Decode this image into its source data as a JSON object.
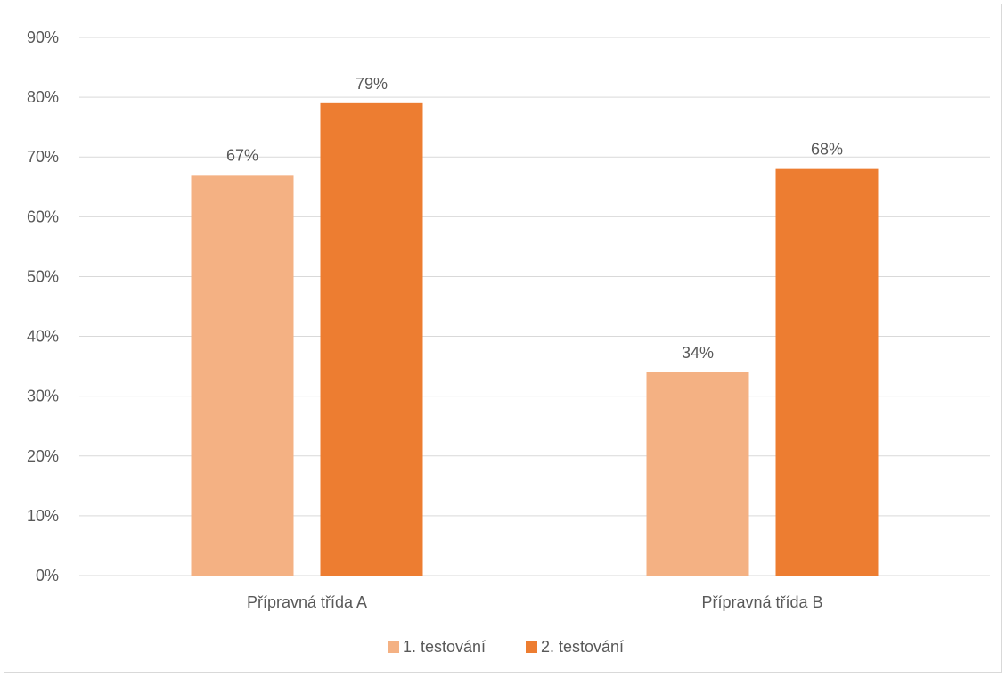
{
  "chart_data": {
    "type": "bar",
    "categories": [
      "Přípravná třída A",
      "Přípravná třída B"
    ],
    "series": [
      {
        "name": "1. testování",
        "values": [
          67,
          34
        ],
        "labels": [
          "67%",
          "34%"
        ],
        "color": "#f4b183"
      },
      {
        "name": "2. testování",
        "values": [
          79,
          68
        ],
        "labels": [
          "79%",
          "68%"
        ],
        "color": "#ed7d31"
      }
    ],
    "ylim": [
      0,
      90
    ],
    "yticks": [
      "0%",
      "10%",
      "20%",
      "30%",
      "40%",
      "50%",
      "60%",
      "70%",
      "80%",
      "90%"
    ],
    "ytick_values": [
      0,
      10,
      20,
      30,
      40,
      50,
      60,
      70,
      80,
      90
    ],
    "grid": true,
    "gridline_color": "#d9d9d9",
    "legend_position": "bottom"
  }
}
